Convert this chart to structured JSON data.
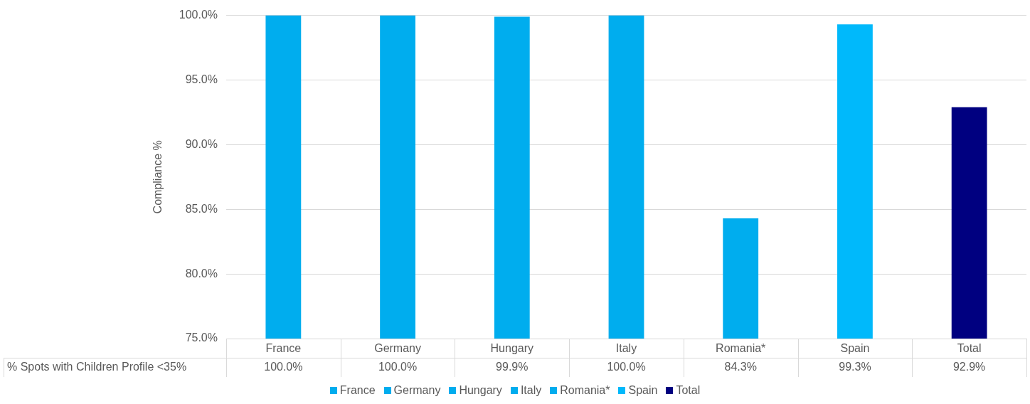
{
  "chart_data": {
    "type": "bar",
    "ylabel": "Compliance %",
    "categories": [
      "France",
      "Germany",
      "Hungary",
      "Italy",
      "Romania*",
      "Spain",
      "Total"
    ],
    "series": [
      {
        "name": "% Spots with Children Profile <35%",
        "values": [
          100.0,
          100.0,
          99.9,
          100.0,
          84.3,
          99.3,
          92.9
        ],
        "colors": [
          "#00adee",
          "#00adee",
          "#00adee",
          "#00adee",
          "#00adee",
          "#00b9fb",
          "#000080"
        ],
        "value_labels": [
          "100.0%",
          "100.0%",
          "99.9%",
          "100.0%",
          "84.3%",
          "99.3%",
          "92.9%"
        ]
      }
    ],
    "ylim": [
      75,
      100
    ],
    "yticks": [
      {
        "value": 75,
        "label": "75.0%"
      },
      {
        "value": 80,
        "label": "80.0%"
      },
      {
        "value": 85,
        "label": "85.0%"
      },
      {
        "value": 90,
        "label": "90.0%"
      },
      {
        "value": 95,
        "label": "95.0%"
      },
      {
        "value": 100,
        "label": "100.0%"
      }
    ],
    "grid": "y",
    "legend": "bottom"
  }
}
